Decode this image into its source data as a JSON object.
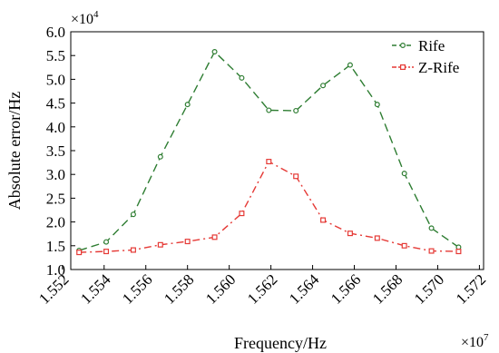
{
  "chart_data": {
    "type": "line",
    "xlabel": "Frequency/Hz",
    "ylabel": "Absolute error/Hz",
    "x_multiplier_label": "×10",
    "x_multiplier_exp": "7",
    "y_multiplier_label": "×10",
    "y_multiplier_exp": "4",
    "xlim": [
      1.5524,
      1.5722
    ],
    "ylim": [
      1.0,
      6.0
    ],
    "x_ticks": [
      1.552,
      1.554,
      1.556,
      1.558,
      1.56,
      1.562,
      1.564,
      1.566,
      1.568,
      1.57,
      1.572
    ],
    "x_tick_labels": [
      "1.552",
      "1.554",
      "1.556",
      "1.558",
      "1.560",
      "1.562",
      "1.564",
      "1.566",
      "1.568",
      "1.570",
      "1.572"
    ],
    "y_ticks": [
      1.0,
      1.5,
      2.0,
      2.5,
      3.0,
      3.5,
      4.0,
      4.5,
      5.0,
      5.5,
      6.0
    ],
    "y_tick_labels": [
      "1.0",
      "1.5",
      "2.0",
      "2.5",
      "3.0",
      "3.5",
      "4.0",
      "4.5",
      "5.0",
      "5.5",
      "6.0"
    ],
    "grid": false,
    "legend_position": "top-right",
    "x": [
      1.5528,
      1.5541,
      1.5554,
      1.5567,
      1.558,
      1.5593,
      1.5606,
      1.5619,
      1.5632,
      1.5645,
      1.5658,
      1.5671,
      1.5684,
      1.5697,
      1.571
    ],
    "series": [
      {
        "name": "Rife",
        "color": "#2e7d32",
        "dash": "dashed",
        "marker": "circle",
        "values": [
          1.4,
          1.58,
          2.16,
          3.37,
          4.47,
          5.58,
          5.03,
          4.35,
          4.34,
          4.87,
          5.3,
          4.47,
          3.02,
          1.87,
          1.47
        ]
      },
      {
        "name": "Z-Rife",
        "color": "#e53935",
        "dash": "dashdot",
        "marker": "square",
        "values": [
          1.36,
          1.38,
          1.41,
          1.52,
          1.59,
          1.68,
          2.18,
          3.27,
          2.96,
          2.04,
          1.76,
          1.66,
          1.5,
          1.39,
          1.38
        ]
      }
    ]
  }
}
